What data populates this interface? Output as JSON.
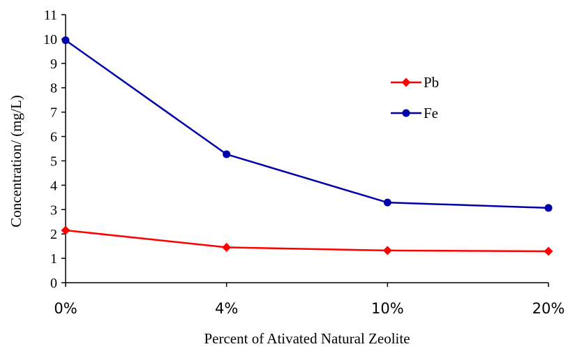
{
  "chart_data": {
    "type": "line",
    "categories": [
      "0%",
      "4%",
      "10%",
      "20%"
    ],
    "series": [
      {
        "name": "Pb",
        "values": [
          2.15,
          1.45,
          1.32,
          1.29
        ],
        "color": "#ff0000",
        "marker": "diamond"
      },
      {
        "name": "Fe",
        "values": [
          9.95,
          5.27,
          3.29,
          3.07
        ],
        "color": "#0000aa",
        "marker": "circle"
      }
    ],
    "xlabel": "Percent of Ativated Natural Zeolite",
    "ylabel": "Concentration/ (mg/L)",
    "ylim": [
      0,
      11
    ],
    "yticks": [
      "0",
      "1",
      "2",
      "3",
      "4",
      "5",
      "6",
      "7",
      "8",
      "9",
      "10",
      "11"
    ],
    "legend": "upper-right-inside",
    "grid": false
  }
}
